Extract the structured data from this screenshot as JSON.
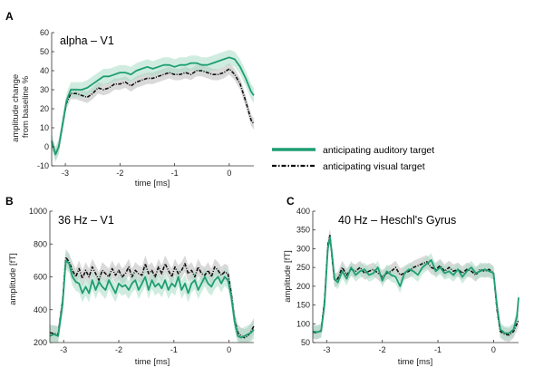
{
  "colors": {
    "auditory": "#1e9e72",
    "auditory_band": "#a9dcc6",
    "visual": "#111111",
    "visual_band": "#b9b9b9"
  },
  "legend": [
    {
      "label": "anticipating auditory target",
      "style": "solid",
      "color": "#1e9e72"
    },
    {
      "label": "anticipating visual target",
      "style": "dash-dot",
      "color": "#111111"
    }
  ],
  "chart_data": [
    {
      "panel": "A",
      "type": "line",
      "title": "alpha – V1",
      "xlabel": "time [ms]",
      "ylabel": [
        "amplitude change",
        "from baseline %"
      ],
      "xlim": [
        -3.25,
        0.45
      ],
      "ylim": [
        -10,
        60
      ],
      "xticks": [
        -3,
        -2,
        -1,
        0
      ],
      "yticks": [
        -10,
        0,
        10,
        20,
        30,
        40,
        50,
        60
      ],
      "xticklabels": [
        "-3",
        "-2",
        "-1",
        "0"
      ],
      "yticklabels": [
        "-10",
        "0",
        "10",
        "20",
        "30",
        "40",
        "50",
        "60"
      ],
      "grid": false,
      "series": [
        {
          "name": "anticipating auditory target",
          "color": "#1e9e72",
          "style": "solid",
          "sem": 4,
          "x": [
            -3.25,
            -3.18,
            -3.12,
            -3.05,
            -2.98,
            -2.9,
            -2.8,
            -2.7,
            -2.6,
            -2.5,
            -2.4,
            -2.3,
            -2.2,
            -2.1,
            -2.0,
            -1.9,
            -1.8,
            -1.7,
            -1.6,
            -1.5,
            -1.4,
            -1.3,
            -1.2,
            -1.1,
            -1.0,
            -0.9,
            -0.8,
            -0.7,
            -0.6,
            -0.5,
            -0.4,
            -0.3,
            -0.2,
            -0.1,
            0.0,
            0.1,
            0.2,
            0.3,
            0.4,
            0.45
          ],
          "y": [
            3,
            -4,
            0,
            12,
            24,
            30,
            30,
            30,
            31,
            33,
            35,
            37,
            37,
            38,
            39,
            39,
            38,
            40,
            41,
            42,
            41,
            42,
            43,
            43,
            42,
            43,
            43,
            44,
            44,
            43,
            43,
            44,
            45,
            46,
            47,
            46,
            42,
            36,
            29,
            27
          ]
        },
        {
          "name": "anticipating visual target",
          "color": "#111111",
          "style": "dash-dot",
          "sem": 3,
          "x": [
            -3.25,
            -3.18,
            -3.12,
            -3.05,
            -2.98,
            -2.9,
            -2.8,
            -2.7,
            -2.6,
            -2.5,
            -2.4,
            -2.3,
            -2.2,
            -2.1,
            -2.0,
            -1.9,
            -1.8,
            -1.7,
            -1.6,
            -1.5,
            -1.4,
            -1.3,
            -1.2,
            -1.1,
            -1.0,
            -0.9,
            -0.8,
            -0.7,
            -0.6,
            -0.5,
            -0.4,
            -0.3,
            -0.2,
            -0.1,
            0.0,
            0.1,
            0.2,
            0.3,
            0.4,
            0.45
          ],
          "y": [
            3,
            -4,
            0,
            12,
            23,
            28,
            28,
            27,
            26,
            28,
            31,
            30,
            31,
            33,
            33,
            34,
            32,
            34,
            35,
            36,
            36,
            37,
            38,
            39,
            38,
            38,
            39,
            38,
            40,
            40,
            39,
            38,
            38,
            39,
            41,
            38,
            33,
            24,
            14,
            12
          ]
        }
      ]
    },
    {
      "panel": "B",
      "type": "line",
      "title": "36 Hz – V1",
      "xlabel": "time [ms]",
      "ylabel": [
        "amplitude [fT]"
      ],
      "xlim": [
        -3.25,
        0.45
      ],
      "ylim": [
        200,
        1000
      ],
      "xticks": [
        -3,
        -2,
        -1,
        0
      ],
      "yticks": [
        200,
        400,
        600,
        800,
        1000
      ],
      "xticklabels": [
        "-3",
        "-2",
        "-1",
        "0"
      ],
      "yticklabels": [
        "200",
        "400",
        "600",
        "800",
        "1000"
      ],
      "grid": false,
      "series": [
        {
          "name": "anticipating auditory target",
          "color": "#1e9e72",
          "style": "solid",
          "sem": 55,
          "x": [
            -3.25,
            -3.18,
            -3.1,
            -3.02,
            -2.96,
            -2.9,
            -2.84,
            -2.78,
            -2.72,
            -2.66,
            -2.6,
            -2.54,
            -2.48,
            -2.42,
            -2.36,
            -2.3,
            -2.24,
            -2.18,
            -2.12,
            -2.06,
            -2.0,
            -1.94,
            -1.88,
            -1.82,
            -1.76,
            -1.7,
            -1.64,
            -1.58,
            -1.52,
            -1.46,
            -1.4,
            -1.34,
            -1.28,
            -1.22,
            -1.16,
            -1.1,
            -1.04,
            -0.98,
            -0.92,
            -0.86,
            -0.8,
            -0.74,
            -0.68,
            -0.62,
            -0.56,
            -0.5,
            -0.44,
            -0.38,
            -0.32,
            -0.26,
            -0.2,
            -0.14,
            -0.08,
            -0.02,
            0.04,
            0.1,
            0.16,
            0.22,
            0.28,
            0.34,
            0.4,
            0.45
          ],
          "y": [
            240,
            250,
            240,
            430,
            700,
            680,
            600,
            570,
            560,
            500,
            540,
            500,
            580,
            520,
            570,
            540,
            520,
            580,
            540,
            500,
            560,
            540,
            550,
            520,
            560,
            580,
            520,
            560,
            600,
            520,
            580,
            540,
            560,
            530,
            580,
            520,
            560,
            540,
            600,
            520,
            560,
            500,
            560,
            580,
            520,
            560,
            600,
            560,
            540,
            580,
            600,
            560,
            600,
            580,
            480,
            330,
            240,
            230,
            240,
            250,
            260,
            280
          ]
        },
        {
          "name": "anticipating visual target",
          "color": "#111111",
          "style": "dash-dot",
          "sem": 50,
          "x": [
            -3.25,
            -3.18,
            -3.1,
            -3.02,
            -2.96,
            -2.9,
            -2.84,
            -2.78,
            -2.72,
            -2.66,
            -2.6,
            -2.54,
            -2.48,
            -2.42,
            -2.36,
            -2.3,
            -2.24,
            -2.18,
            -2.12,
            -2.06,
            -2.0,
            -1.94,
            -1.88,
            -1.82,
            -1.76,
            -1.7,
            -1.64,
            -1.58,
            -1.52,
            -1.46,
            -1.4,
            -1.34,
            -1.28,
            -1.22,
            -1.16,
            -1.1,
            -1.04,
            -0.98,
            -0.92,
            -0.86,
            -0.8,
            -0.74,
            -0.68,
            -0.62,
            -0.56,
            -0.5,
            -0.44,
            -0.38,
            -0.32,
            -0.26,
            -0.2,
            -0.14,
            -0.08,
            -0.02,
            0.04,
            0.1,
            0.16,
            0.22,
            0.28,
            0.34,
            0.4,
            0.45
          ],
          "y": [
            260,
            255,
            250,
            450,
            720,
            690,
            640,
            600,
            650,
            590,
            640,
            600,
            660,
            620,
            580,
            640,
            620,
            600,
            650,
            610,
            640,
            600,
            620,
            660,
            600,
            640,
            620,
            610,
            680,
            620,
            640,
            600,
            660,
            620,
            680,
            640,
            600,
            660,
            620,
            640,
            680,
            620,
            640,
            600,
            660,
            620,
            610,
            640,
            600,
            660,
            640,
            610,
            630,
            620,
            500,
            340,
            260,
            240,
            230,
            240,
            270,
            300
          ]
        }
      ]
    },
    {
      "panel": "C",
      "type": "line",
      "title": "40 Hz – Heschl's Gyrus",
      "xlabel": "time [ms]",
      "ylabel": [
        "amplitude [fT]"
      ],
      "xlim": [
        -3.25,
        0.45
      ],
      "ylim": [
        50,
        400
      ],
      "xticks": [
        -3,
        -2,
        -1,
        0
      ],
      "yticks": [
        50,
        100,
        150,
        200,
        250,
        300,
        350,
        400
      ],
      "xticklabels": [
        "-3",
        "-2",
        "-1",
        "0"
      ],
      "yticklabels": [
        "50",
        "100",
        "150",
        "200",
        "250",
        "300",
        "350",
        "400"
      ],
      "grid": false,
      "series": [
        {
          "name": "anticipating auditory target",
          "color": "#1e9e72",
          "style": "solid",
          "sem": 18,
          "x": [
            -3.25,
            -3.18,
            -3.1,
            -3.04,
            -2.98,
            -2.94,
            -2.9,
            -2.86,
            -2.8,
            -2.72,
            -2.64,
            -2.56,
            -2.48,
            -2.4,
            -2.32,
            -2.24,
            -2.16,
            -2.08,
            -2.0,
            -1.92,
            -1.84,
            -1.76,
            -1.68,
            -1.6,
            -1.52,
            -1.44,
            -1.36,
            -1.28,
            -1.2,
            -1.12,
            -1.04,
            -0.96,
            -0.88,
            -0.8,
            -0.72,
            -0.64,
            -0.56,
            -0.48,
            -0.4,
            -0.32,
            -0.24,
            -0.16,
            -0.08,
            0.0,
            0.06,
            0.12,
            0.2,
            0.28,
            0.36,
            0.42,
            0.45
          ],
          "y": [
            80,
            78,
            80,
            150,
            300,
            330,
            280,
            220,
            210,
            240,
            220,
            250,
            230,
            240,
            245,
            230,
            235,
            250,
            215,
            240,
            230,
            225,
            200,
            235,
            245,
            240,
            230,
            250,
            260,
            270,
            240,
            250,
            235,
            240,
            230,
            245,
            225,
            240,
            250,
            235,
            240,
            245,
            240,
            235,
            150,
            85,
            75,
            75,
            85,
            120,
            170
          ]
        },
        {
          "name": "anticipating visual target",
          "color": "#111111",
          "style": "dash-dot",
          "sem": 18,
          "x": [
            -3.25,
            -3.18,
            -3.1,
            -3.04,
            -2.98,
            -2.94,
            -2.9,
            -2.86,
            -2.8,
            -2.72,
            -2.64,
            -2.56,
            -2.48,
            -2.4,
            -2.32,
            -2.24,
            -2.16,
            -2.08,
            -2.0,
            -1.92,
            -1.84,
            -1.76,
            -1.68,
            -1.6,
            -1.52,
            -1.44,
            -1.36,
            -1.28,
            -1.2,
            -1.12,
            -1.04,
            -0.96,
            -0.88,
            -0.8,
            -0.72,
            -0.64,
            -0.56,
            -0.48,
            -0.4,
            -0.32,
            -0.24,
            -0.16,
            -0.08,
            0.0,
            0.06,
            0.12,
            0.2,
            0.28,
            0.36,
            0.42,
            0.45
          ],
          "y": [
            78,
            76,
            82,
            160,
            310,
            335,
            270,
            215,
            220,
            250,
            230,
            245,
            240,
            250,
            235,
            240,
            245,
            235,
            225,
            235,
            240,
            250,
            230,
            235,
            240,
            250,
            255,
            260,
            265,
            250,
            245,
            255,
            240,
            250,
            240,
            245,
            235,
            245,
            240,
            230,
            245,
            240,
            245,
            235,
            140,
            80,
            72,
            70,
            80,
            100,
            110
          ]
        }
      ]
    }
  ]
}
